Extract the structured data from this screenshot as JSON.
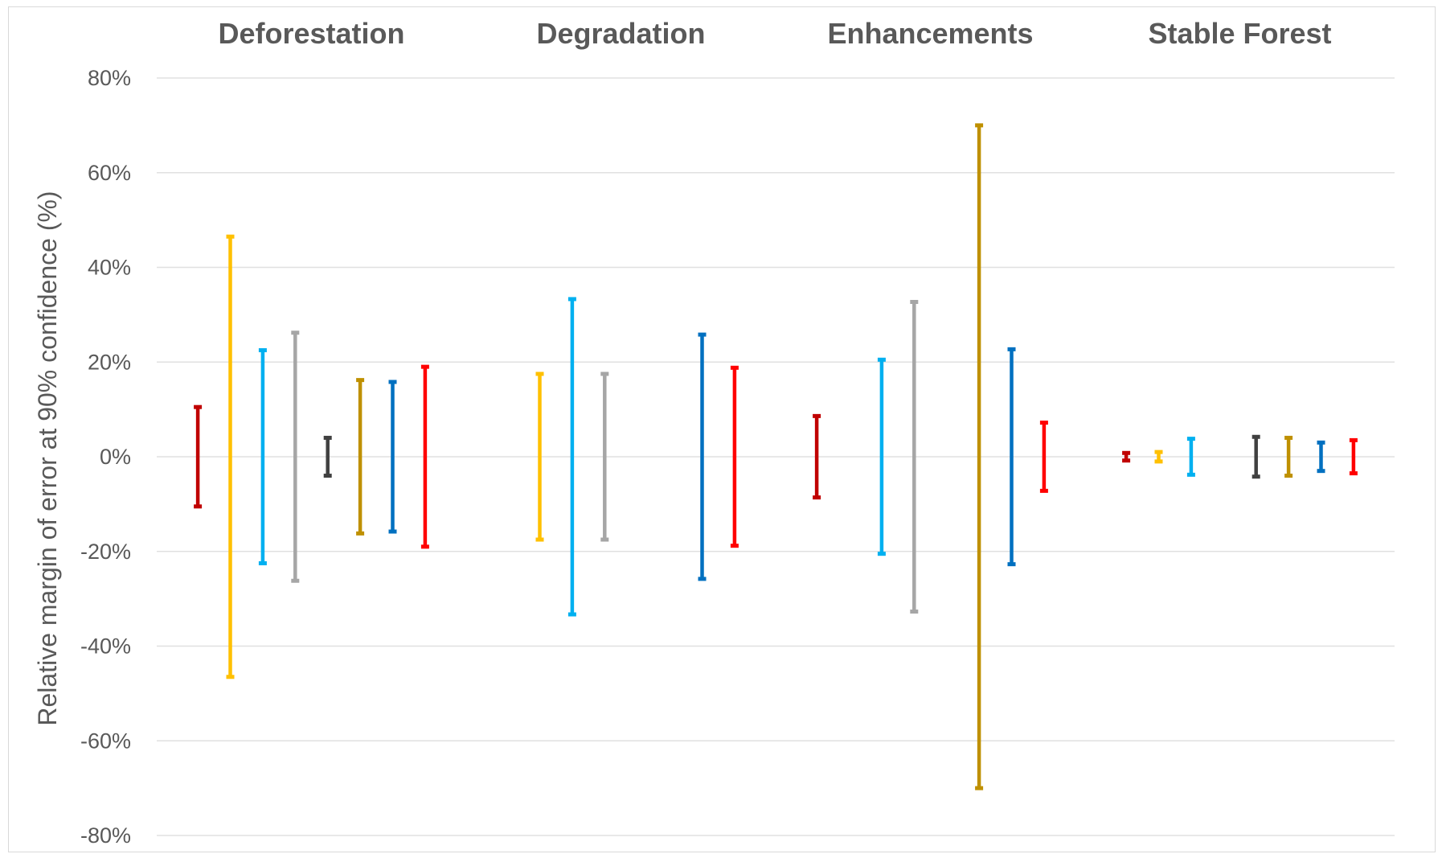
{
  "chart_data": {
    "type": "errorbar",
    "ylabel": "Relative margin of error at 90% confidence  (%)",
    "ylim": [
      -80,
      80
    ],
    "y_ticks": [
      {
        "value": 80,
        "label": "80%"
      },
      {
        "value": 60,
        "label": "60%"
      },
      {
        "value": 40,
        "label": "40%"
      },
      {
        "value": 20,
        "label": "20%"
      },
      {
        "value": 0,
        "label": "0%"
      },
      {
        "value": -20,
        "label": "-20%"
      },
      {
        "value": -40,
        "label": "-40%"
      },
      {
        "value": -60,
        "label": "-60%"
      },
      {
        "value": -80,
        "label": "-80%"
      }
    ],
    "grid": true,
    "series_colors": [
      "#c00000",
      "#ffc000",
      "#00b0f0",
      "#a6a6a6",
      "#404040",
      "#bf9000",
      "#0070c0",
      "#ff0000"
    ],
    "panels": [
      {
        "title": "Deforestation",
        "margins": [
          10.5,
          46.5,
          22.5,
          26.2,
          4,
          16.2,
          15.8,
          19
        ]
      },
      {
        "title": "Degradation",
        "margins": [
          null,
          17.5,
          33.3,
          17.5,
          null,
          null,
          25.8,
          18.8
        ]
      },
      {
        "title": "Enhancements",
        "margins": [
          8.6,
          null,
          20.5,
          32.7,
          null,
          70,
          22.7,
          7.2
        ]
      },
      {
        "title": "Stable Forest",
        "margins": [
          0.8,
          1,
          3.8,
          null,
          4.2,
          4,
          3,
          3.5
        ]
      }
    ]
  }
}
